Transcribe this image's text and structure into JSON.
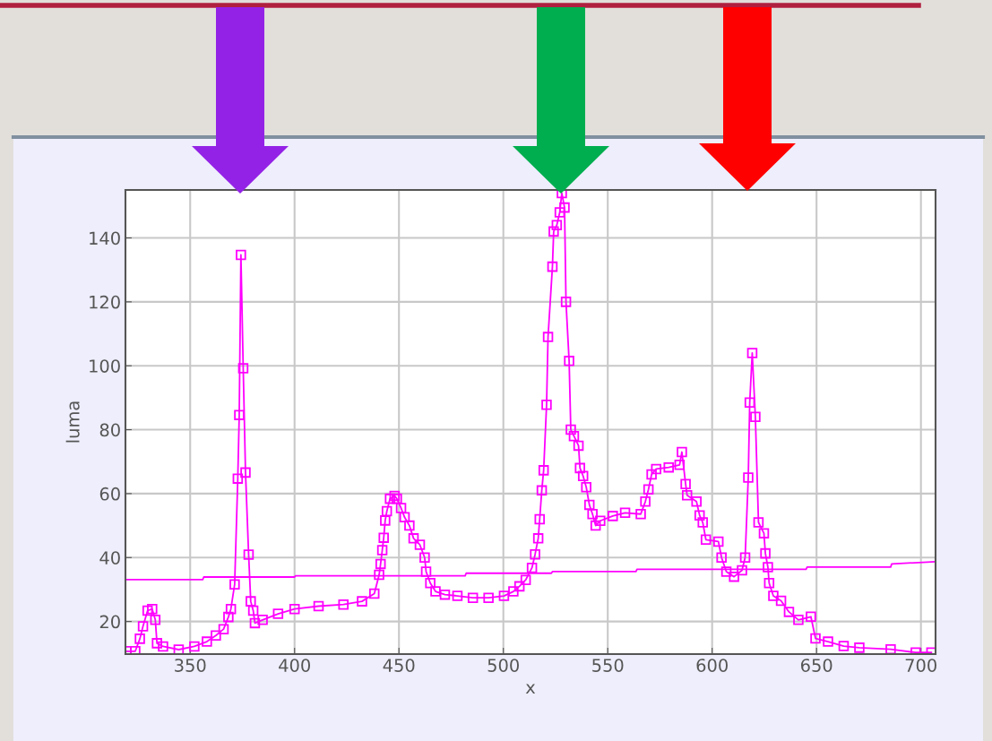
{
  "chart_data": {
    "type": "line",
    "xlabel": "x",
    "ylabel": "luma",
    "xlim": [
      319,
      707
    ],
    "ylim": [
      9.8,
      155
    ],
    "xticks": [
      350,
      400,
      450,
      500,
      550,
      600,
      650,
      700
    ],
    "yticks": [
      20,
      40,
      60,
      80,
      100,
      120,
      140
    ],
    "grid": true,
    "series": [
      {
        "color": "#ff00ff",
        "marker": "square",
        "x": [
          319.5,
          323.7,
          325.9,
          327.4,
          329.6,
          331.8,
          333.3,
          334.1,
          337,
          344.5,
          352,
          358,
          362.3,
          366,
          368.3,
          369.5,
          371.3,
          372.8,
          373.5,
          374.3,
          375.4,
          376.5,
          378,
          379,
          380.2,
          381,
          384.7,
          392.1,
          400,
          411.5,
          423.4,
          432.3,
          438.2,
          440.5,
          441.2,
          442,
          442.7,
          443.4,
          444.2,
          445.7,
          447.9,
          449,
          451,
          452.7,
          455,
          457,
          460,
          462.3,
          463,
          465,
          467.5,
          472,
          478,
          485.4,
          492.9,
          500.3,
          504.8,
          507.7,
          510.7,
          513.7,
          515.2,
          516.7,
          517.4,
          518.4,
          519.3,
          520.7,
          521.4,
          523.5,
          524.1,
          525.6,
          527,
          528,
          529.3,
          530,
          531.5,
          532.3,
          533.8,
          536,
          536.7,
          538.2,
          539.7,
          541.2,
          542.7,
          544.2,
          546.4,
          552.4,
          558.3,
          565.8,
          568,
          569.5,
          571,
          573.2,
          579.2,
          584.4,
          585.5,
          587.3,
          588,
          592.5,
          594,
          595.5,
          597,
          603,
          604.5,
          606.8,
          610.5,
          614.3,
          615.8,
          617.3,
          618,
          619.2,
          620.7,
          622.2,
          624.8,
          625.5,
          626.7,
          627.3,
          629.3,
          633,
          636.8,
          641.3,
          647.3,
          649.5,
          655.5,
          663,
          670.5,
          685.5,
          697.5,
          705
        ],
        "values": [
          10.7,
          10.7,
          14.6,
          18.5,
          23.4,
          23.9,
          20.5,
          13.2,
          12.2,
          11.2,
          12.2,
          13.7,
          15.6,
          17.6,
          21.4,
          23.9,
          31.6,
          64.7,
          84.6,
          134.7,
          99.2,
          66.6,
          40.9,
          26.3,
          23.4,
          19.5,
          20.5,
          22.4,
          23.9,
          24.8,
          25.3,
          26.3,
          28.7,
          34.6,
          38,
          42.3,
          46.2,
          51.6,
          54.5,
          58.4,
          59.3,
          58.4,
          55.5,
          52.6,
          50,
          46,
          44,
          40,
          35.6,
          32,
          29.4,
          28.4,
          28,
          27.4,
          27.4,
          28,
          29.4,
          31,
          33,
          36.8,
          41,
          46,
          52,
          61,
          67.3,
          87.8,
          109,
          131,
          142,
          144,
          148,
          154,
          149.5,
          120,
          101.5,
          80,
          78,
          75,
          68,
          65.5,
          62,
          56.5,
          53.6,
          50,
          51.5,
          53,
          54,
          53.6,
          57.5,
          61.3,
          66,
          67.7,
          68.2,
          69,
          73,
          63,
          59.5,
          57.5,
          53.2,
          51,
          45.6,
          45,
          40,
          35.6,
          34,
          36,
          40,
          65,
          88.5,
          104,
          84,
          51,
          47.6,
          41.3,
          37,
          32,
          28,
          26.5,
          23,
          20.5,
          21.5,
          14.7,
          13.7,
          12.3,
          11.8,
          11.3,
          10.3,
          10.3
        ]
      },
      {
        "color": "#ff00ff",
        "marker": "none",
        "x": [
          319.2,
          356,
          356.5,
          400,
          400.5,
          481.7,
          482.2,
          523,
          523.5,
          563.5,
          564,
          645,
          645.5,
          685.5,
          686,
          706.9
        ],
        "values": [
          33.1,
          33.1,
          33.9,
          33.9,
          34.3,
          34.3,
          35.1,
          35.1,
          35.6,
          35.6,
          36.3,
          36.3,
          37,
          37,
          38,
          38.7
        ]
      }
    ]
  }
}
